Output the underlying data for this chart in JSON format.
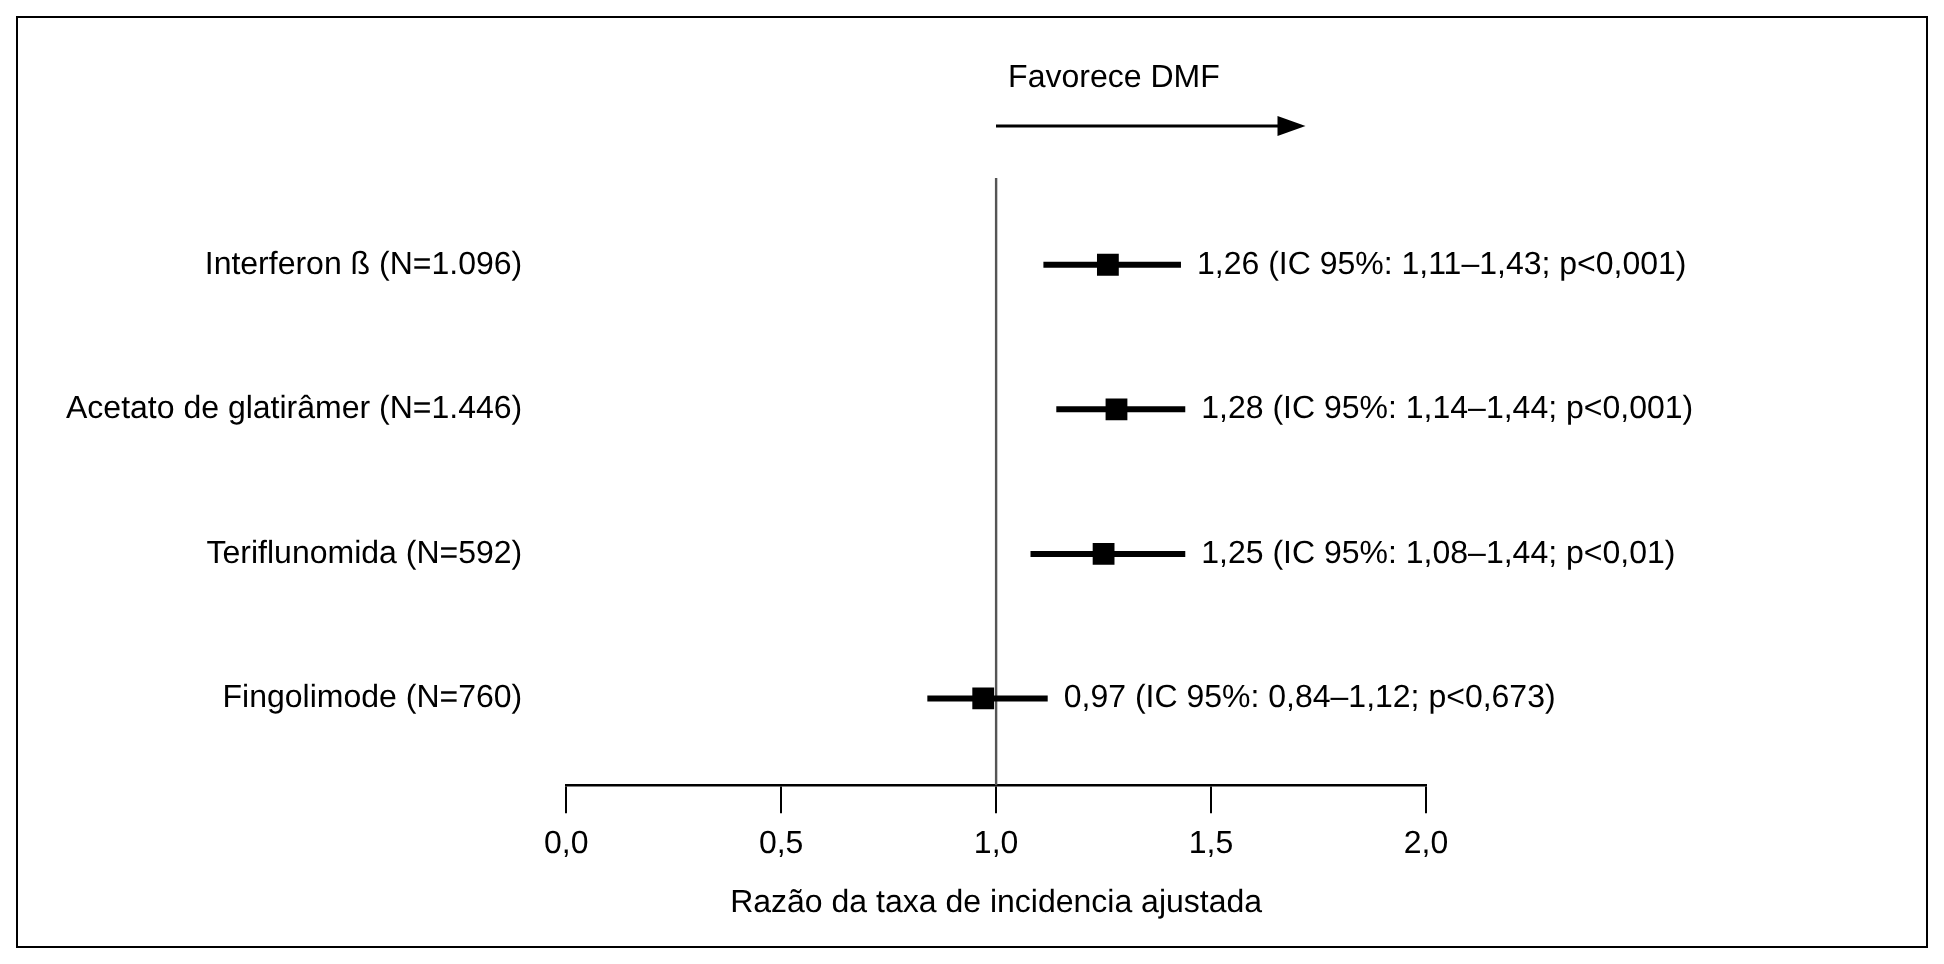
{
  "chart_data": {
    "type": "scatter",
    "orientation": "horizontal",
    "xlabel": "Razão da taxa de incidencia ajustada",
    "categories": [
      "Interferon ß (N=1.096)",
      "Acetato de glatirâmer (N=1.446)",
      "Teriflunomida (N=592)",
      "Fingolimode (N=760)"
    ],
    "series": [
      {
        "color": "#000000",
        "values": [
          1.26,
          1.28,
          1.25,
          0.97
        ],
        "errors": [
          [
            1.11,
            1.43
          ],
          [
            1.14,
            1.44
          ],
          [
            1.08,
            1.44
          ],
          [
            0.84,
            1.12
          ]
        ],
        "value_labels": [
          "1,26 (IC 95%: 1,11–1,43; p<0,001)",
          "1,28 (IC 95%: 1,14–1,44; p<0,001)",
          "1,25 (IC 95%: 1,08–1,44; p<0,01)",
          "0,97 (IC 95%: 0,84–1,12; p<0,673)"
        ]
      }
    ],
    "xlim": [
      0,
      2
    ],
    "xticks": [
      {
        "value": 0,
        "label": "0,0"
      },
      {
        "value": 0.5,
        "label": "0,5"
      },
      {
        "value": 1,
        "label": "1,0"
      },
      {
        "value": 1.5,
        "label": "1,5"
      },
      {
        "value": 2,
        "label": "2,0"
      }
    ],
    "ref_lines": [
      {
        "axis": "x",
        "value": 1,
        "color": "#555555"
      }
    ],
    "annotations": [
      "Favorece DMF"
    ],
    "marker": "square",
    "grid": false,
    "legend": false
  }
}
